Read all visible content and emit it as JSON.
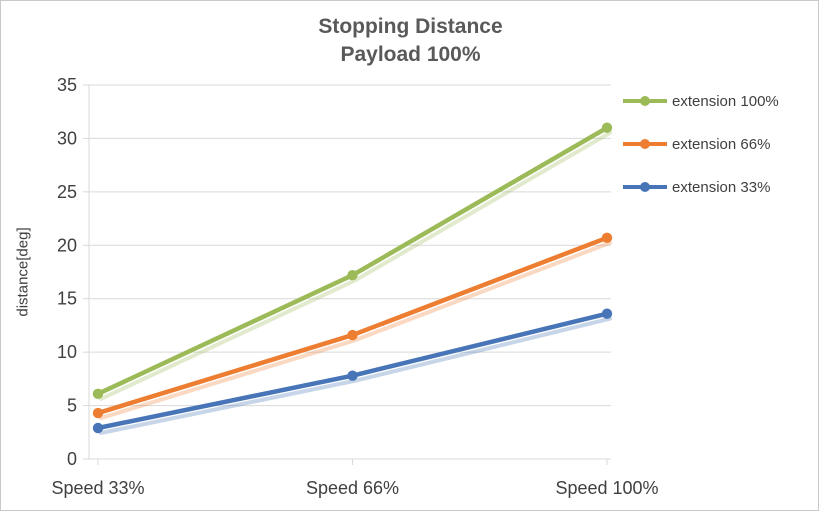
{
  "chart_data": {
    "type": "line",
    "title": "Stopping Distance",
    "subtitle": "Payload 100%",
    "xlabel": "",
    "ylabel": "distance[deg]",
    "categories": [
      "Speed 33%",
      "Speed 66%",
      "Speed 100%"
    ],
    "series": [
      {
        "name": "extension 100%",
        "color": "#9CBB58",
        "values": [
          6.1,
          17.2,
          31.0
        ]
      },
      {
        "name": "extension 66%",
        "color": "#ED7D31",
        "values": [
          4.3,
          11.6,
          20.7
        ]
      },
      {
        "name": "extension 33%",
        "color": "#4775B7",
        "values": [
          2.9,
          7.8,
          13.6
        ]
      }
    ],
    "ylim": [
      0,
      35
    ],
    "ytick_step": 5,
    "grid": true,
    "legend_position": "right",
    "colors": {
      "title_text": "#595959",
      "axis_text": "#404040",
      "gridline": "#D9D9D9"
    }
  }
}
